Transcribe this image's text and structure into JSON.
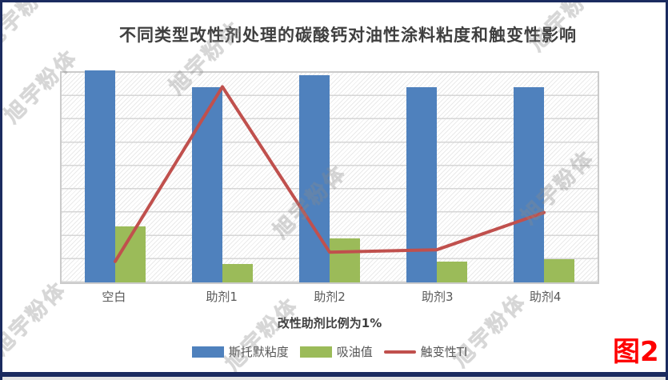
{
  "page": {
    "watermark_text": "旭宇粉体",
    "figure_label": "图2"
  },
  "chart": {
    "title": "不同类型改性剂处理的碳酸钙对油性涂料粘度和触变性影响",
    "x_axis_label": "改性助剂比例为1%",
    "legend": [
      {
        "label": "斯托默粘度",
        "type": "bar",
        "color": "#4F81BD"
      },
      {
        "label": "吸油值",
        "type": "bar",
        "color": "#9BBB59"
      },
      {
        "label": "触变性TI",
        "type": "line",
        "color": "#C0504D"
      }
    ]
  },
  "chart_data": {
    "type": "bar",
    "subtype": "bar+line combo",
    "title": "不同类型改性剂处理的碳酸钙对油性涂料粘度和触变性影响",
    "categories": [
      "空白",
      "助剂1",
      "助剂2",
      "助剂3",
      "助剂4"
    ],
    "series": [
      {
        "name": "斯托默粘度",
        "type": "bar",
        "color": "#4F81BD",
        "values": [
          9.1,
          8.4,
          8.9,
          8.4,
          8.4
        ]
      },
      {
        "name": "吸油值",
        "type": "bar",
        "color": "#9BBB59",
        "values": [
          2.4,
          0.8,
          1.9,
          0.9,
          1.0
        ]
      },
      {
        "name": "触变性TI",
        "type": "line",
        "color": "#C0504D",
        "values": [
          0.9,
          8.4,
          1.3,
          1.4,
          3.0
        ]
      }
    ],
    "xlabel": "改性助剂比例为1%",
    "ylabel": "",
    "ylim": [
      0,
      9
    ],
    "y_axis_labels_visible": false,
    "y_units": "relative gridline units (axis tick labels not visible in image)",
    "gridline_rows": 9,
    "grid": "horizontal gridlines on, hatched plot background",
    "legend_position": "bottom center"
  },
  "colors": {
    "bar_blue": "#4F81BD",
    "bar_green": "#9BBB59",
    "line_red": "#C0504D",
    "frame_navy": "#1B2B5F",
    "figure_label_red": "#FE0000",
    "grid_gray": "#D6D6D6",
    "title_gray": "#3F3F3F",
    "tick_label_gray": "#595959"
  }
}
